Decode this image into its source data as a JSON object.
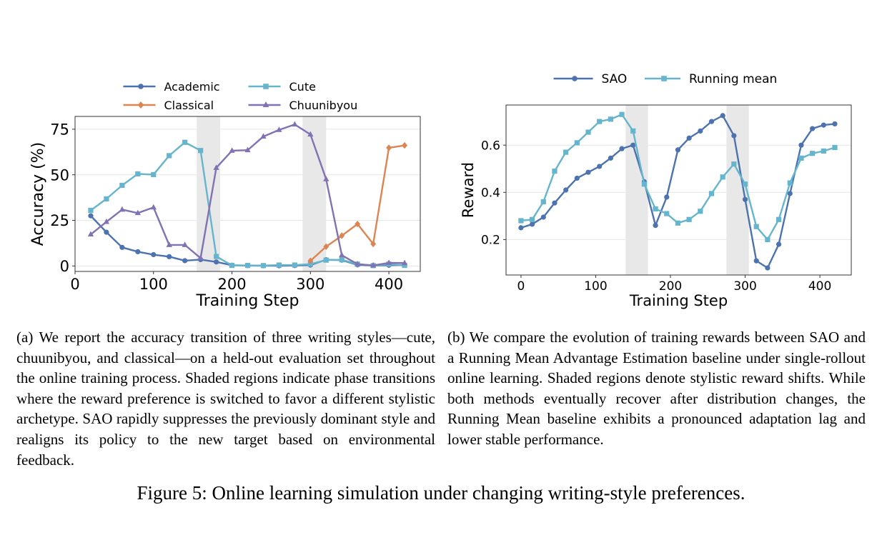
{
  "figure": {
    "caption": "Figure 5: Online learning simulation under changing writing-style preferences."
  },
  "subfigures": [
    {
      "caption": "(a) We report the accuracy transition of three writing styles—cute, chuunibyou, and classical—on a held-out evaluation set throughout the online training process. Shaded regions indicate phase transitions where the reward preference is switched to favor a different stylistic archetype. SAO rapidly suppresses the previously dominant style and realigns its policy to the new target based on environmental feedback."
    },
    {
      "caption": "(b) We compare the evolution of training rewards between SAO and a Running Mean Advantage Estimation baseline under single-rollout online learning. Shaded regions denote stylistic reward shifts. While both methods eventually recover after distribution changes, the Running Mean baseline exhibits a pronounced adaptation lag and lower stable performance."
    }
  ],
  "chart_data": [
    {
      "type": "line",
      "xlabel": "Training Step",
      "ylabel": "Accuracy (%)",
      "xlim": [
        0,
        440
      ],
      "ylim": [
        -3,
        82
      ],
      "xticks": [
        0,
        100,
        200,
        300,
        400
      ],
      "yticks": [
        0,
        25,
        50,
        75
      ],
      "grid": true,
      "legend": "top",
      "shaded_regions": [
        [
          155,
          185
        ],
        [
          290,
          320
        ]
      ],
      "series": [
        {
          "name": "Academic",
          "color": "#4c72b0",
          "marker": "circle",
          "x": [
            20,
            40,
            60,
            80,
            100,
            120,
            140,
            160,
            180,
            200,
            220,
            240,
            260,
            280,
            300,
            320,
            340,
            360,
            380,
            400,
            420
          ],
          "y": [
            27.5,
            18.5,
            10.2,
            7.8,
            6.2,
            5.1,
            2.9,
            3.5,
            2.2,
            0.4,
            0.2,
            0.1,
            0.1,
            0.2,
            0.5,
            3.4,
            3.2,
            0.6,
            0.2,
            0.4,
            0.5
          ]
        },
        {
          "name": "Cute",
          "color": "#64b5cd",
          "marker": "square",
          "x": [
            20,
            40,
            60,
            80,
            100,
            120,
            140,
            160,
            180,
            200,
            220,
            240,
            260,
            280,
            300,
            320,
            340,
            360,
            380,
            400,
            420
          ],
          "y": [
            30.5,
            36.8,
            44.2,
            50.5,
            50.1,
            60.5,
            67.8,
            63.3,
            5.2,
            0.3,
            0.3,
            0.2,
            0.5,
            0.5,
            1.0,
            3.2,
            3.4,
            1.0,
            0.2,
            1.0,
            0.3
          ]
        },
        {
          "name": "Classical",
          "color": "#dd8452",
          "marker": "diamond",
          "x": [
            300,
            320,
            340,
            360,
            380,
            400,
            420
          ],
          "y": [
            2.8,
            10.6,
            16.6,
            23.0,
            12.1,
            64.8,
            66.1
          ]
        },
        {
          "name": "Chuunibyou",
          "color": "#8172b3",
          "marker": "triangle",
          "x": [
            20,
            40,
            60,
            80,
            100,
            120,
            140,
            160,
            180,
            200,
            220,
            240,
            260,
            280,
            300,
            320,
            340,
            360,
            380,
            400,
            420
          ],
          "y": [
            17.3,
            24.2,
            30.9,
            29.0,
            32.1,
            11.5,
            11.5,
            4.3,
            53.8,
            63.2,
            63.5,
            71.0,
            74.6,
            77.6,
            72.1,
            47.6,
            5.9,
            1.0,
            0.3,
            1.7,
            1.6
          ]
        }
      ]
    },
    {
      "type": "line",
      "xlabel": "Training Step",
      "ylabel": "Reward",
      "xlim": [
        -20,
        442
      ],
      "ylim": [
        0.05,
        0.77
      ],
      "xticks": [
        0,
        100,
        200,
        300,
        400
      ],
      "yticks": [
        0.2,
        0.4,
        0.6
      ],
      "grid": true,
      "legend": "top",
      "shaded_regions": [
        [
          140,
          170
        ],
        [
          275,
          305
        ]
      ],
      "series": [
        {
          "name": "SAO",
          "color": "#4c72b0",
          "marker": "circle",
          "x": [
            0,
            15,
            30,
            45,
            60,
            75,
            90,
            105,
            120,
            135,
            150,
            165,
            180,
            195,
            210,
            225,
            240,
            255,
            270,
            285,
            300,
            315,
            330,
            345,
            360,
            375,
            390,
            405,
            420
          ],
          "y": [
            0.25,
            0.265,
            0.295,
            0.355,
            0.41,
            0.46,
            0.485,
            0.51,
            0.545,
            0.585,
            0.6,
            0.445,
            0.26,
            0.38,
            0.58,
            0.63,
            0.66,
            0.7,
            0.725,
            0.64,
            0.37,
            0.11,
            0.08,
            0.18,
            0.395,
            0.6,
            0.67,
            0.685,
            0.69
          ]
        },
        {
          "name": "Running mean",
          "color": "#64b5cd",
          "marker": "square",
          "x": [
            0,
            15,
            30,
            45,
            60,
            75,
            90,
            105,
            120,
            135,
            150,
            165,
            180,
            195,
            210,
            225,
            240,
            255,
            270,
            285,
            300,
            315,
            330,
            345,
            360,
            375,
            390,
            405,
            420
          ],
          "y": [
            0.28,
            0.285,
            0.36,
            0.49,
            0.57,
            0.61,
            0.655,
            0.7,
            0.71,
            0.73,
            0.66,
            0.435,
            0.33,
            0.31,
            0.27,
            0.285,
            0.32,
            0.395,
            0.465,
            0.52,
            0.435,
            0.255,
            0.2,
            0.285,
            0.44,
            0.545,
            0.565,
            0.575,
            0.59
          ]
        }
      ]
    }
  ]
}
